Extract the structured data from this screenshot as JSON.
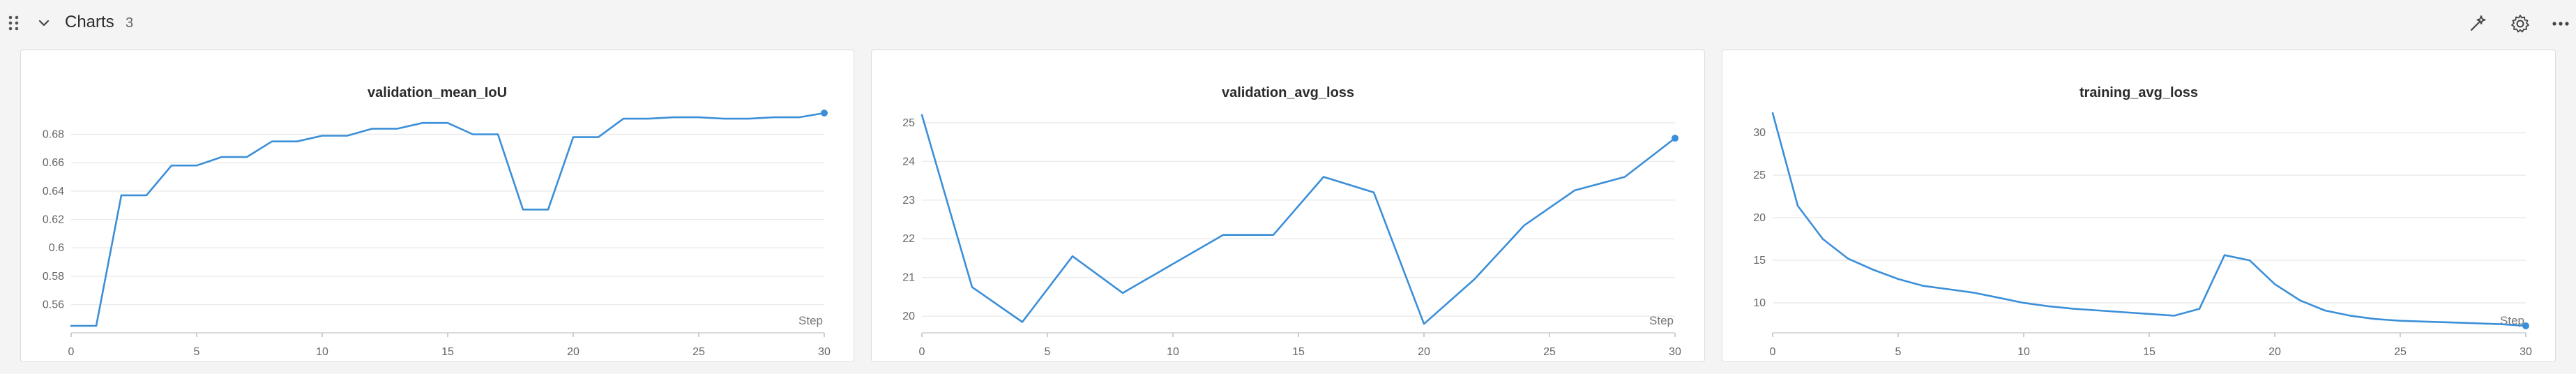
{
  "section": {
    "title": "Charts",
    "count": "3"
  },
  "icons": {
    "drag": "drag-handle-icon",
    "collapse": "chevron-down-icon",
    "magic": "magic-wand-icon",
    "settings": "gear-icon",
    "more": "more-horizontal-icon"
  },
  "colors": {
    "series": "#3b8fd8"
  },
  "chart_data": [
    {
      "type": "line",
      "title": "validation_mean_IoU",
      "xlabel": "Step",
      "ylabel": "",
      "xlim": [
        0,
        30
      ],
      "ylim": [
        0.545,
        0.695
      ],
      "x_ticks": [
        0,
        5,
        10,
        15,
        20,
        25,
        30
      ],
      "y_ticks": [
        0.56,
        0.58,
        0.6,
        0.62,
        0.64,
        0.66,
        0.68
      ],
      "y_tick_labels": [
        "0.56",
        "0.58",
        "0.6",
        "0.62",
        "0.64",
        "0.66",
        "0.68"
      ],
      "x": [
        0,
        1,
        2,
        3,
        4,
        5,
        6,
        7,
        8,
        9,
        10,
        11,
        12,
        13,
        14,
        15,
        16,
        17,
        18,
        19,
        20,
        21,
        22,
        23,
        24,
        25,
        26,
        27,
        28,
        29,
        30
      ],
      "y": [
        0.545,
        0.545,
        0.637,
        0.637,
        0.658,
        0.658,
        0.664,
        0.664,
        0.675,
        0.675,
        0.679,
        0.679,
        0.684,
        0.684,
        0.688,
        0.688,
        0.68,
        0.68,
        0.627,
        0.627,
        0.678,
        0.678,
        0.691,
        0.691,
        0.692,
        0.692,
        0.691,
        0.691,
        0.692,
        0.692,
        0.695
      ]
    },
    {
      "type": "line",
      "title": "validation_avg_loss",
      "xlabel": "Step",
      "ylabel": "",
      "xlim": [
        0,
        30
      ],
      "ylim": [
        19.75,
        25.25
      ],
      "x_ticks": [
        0,
        5,
        10,
        15,
        20,
        25,
        30
      ],
      "y_ticks": [
        20,
        21,
        22,
        23,
        24,
        25
      ],
      "y_tick_labels": [
        "20",
        "21",
        "22",
        "23",
        "24",
        "25"
      ],
      "x": [
        0,
        2,
        4,
        6,
        8,
        10,
        12,
        14,
        16,
        18,
        20,
        22,
        24,
        26,
        28,
        30
      ],
      "y": [
        25.2,
        20.75,
        19.85,
        21.55,
        20.6,
        21.35,
        22.1,
        22.1,
        23.6,
        23.2,
        19.8,
        20.95,
        22.35,
        23.25,
        23.6,
        24.6
      ]
    },
    {
      "type": "line",
      "title": "training_avg_loss",
      "xlabel": "Step",
      "ylabel": "",
      "xlim": [
        0,
        30
      ],
      "ylim": [
        7.3,
        32.3
      ],
      "x_ticks": [
        0,
        5,
        10,
        15,
        20,
        25,
        30
      ],
      "y_ticks": [
        10,
        15,
        20,
        25,
        30
      ],
      "y_tick_labels": [
        "10",
        "15",
        "20",
        "25",
        "30"
      ],
      "x": [
        0,
        1,
        2,
        3,
        4,
        5,
        6,
        7,
        8,
        9,
        10,
        11,
        12,
        13,
        14,
        15,
        16,
        17,
        18,
        19,
        20,
        21,
        22,
        23,
        24,
        25,
        26,
        27,
        28,
        29,
        30
      ],
      "y": [
        32.3,
        21.4,
        17.5,
        15.2,
        13.9,
        12.8,
        12.0,
        11.6,
        11.2,
        10.6,
        10.0,
        9.6,
        9.3,
        9.1,
        8.9,
        8.7,
        8.5,
        9.3,
        15.6,
        15.0,
        12.2,
        10.3,
        9.1,
        8.5,
        8.1,
        7.9,
        7.8,
        7.7,
        7.6,
        7.5,
        7.3
      ]
    }
  ]
}
